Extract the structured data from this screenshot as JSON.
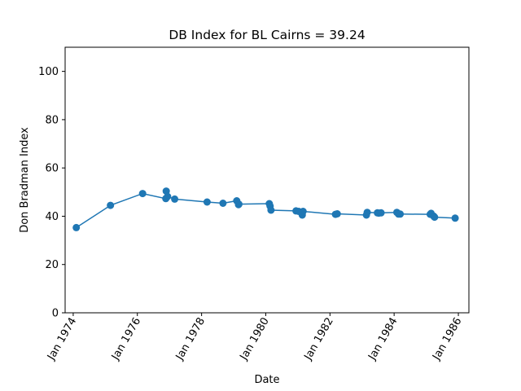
{
  "chart_data": {
    "type": "line",
    "title": "DB Index for BL Cairns = 39.24",
    "xlabel": "Date",
    "ylabel": "Don Bradman Index",
    "ylim": [
      0,
      110
    ],
    "xlim": [
      "1973-10-01",
      "1986-05-01"
    ],
    "yticks": [
      0,
      20,
      40,
      60,
      80,
      100
    ],
    "xticks": [
      {
        "date": "1974-01-01",
        "label": "Jan 1974"
      },
      {
        "date": "1976-01-01",
        "label": "Jan 1976"
      },
      {
        "date": "1978-01-01",
        "label": "Jan 1978"
      },
      {
        "date": "1980-01-01",
        "label": "Jan 1980"
      },
      {
        "date": "1982-01-01",
        "label": "Jan 1982"
      },
      {
        "date": "1984-01-01",
        "label": "Jan 1984"
      },
      {
        "date": "1986-01-01",
        "label": "Jan 1986"
      }
    ],
    "grid": false,
    "line_color": "#1f77b4",
    "series": [
      {
        "name": "",
        "x": [
          "1974-02-05",
          "1975-03-01",
          "1976-03-01",
          "1976-11-20",
          "1976-11-25",
          "1976-12-10",
          "1977-03-01",
          "1978-03-05",
          "1978-09-01",
          "1979-02-05",
          "1979-02-25",
          "1979-03-01",
          "1980-02-10",
          "1980-02-20",
          "1980-03-01",
          "1980-12-10",
          "1981-01-10",
          "1981-02-20",
          "1981-03-01",
          "1982-03-05",
          "1982-03-25",
          "1983-02-20",
          "1983-03-01",
          "1983-06-25",
          "1983-07-10",
          "1983-08-05",
          "1984-02-01",
          "1984-02-20",
          "1984-03-10",
          "1985-02-15",
          "1985-02-25",
          "1985-03-25",
          "1985-04-05",
          "1985-11-25"
        ],
        "y": [
          35.3,
          44.5,
          49.4,
          47.3,
          50.4,
          48.2,
          47.1,
          45.9,
          45.4,
          46.4,
          44.8,
          45.0,
          45.2,
          44.2,
          42.5,
          42.2,
          42.0,
          40.5,
          42.0,
          40.8,
          41.0,
          40.5,
          41.6,
          41.4,
          41.3,
          41.4,
          41.6,
          40.9,
          40.9,
          40.8,
          41.2,
          40.1,
          39.6,
          39.2
        ]
      }
    ]
  }
}
